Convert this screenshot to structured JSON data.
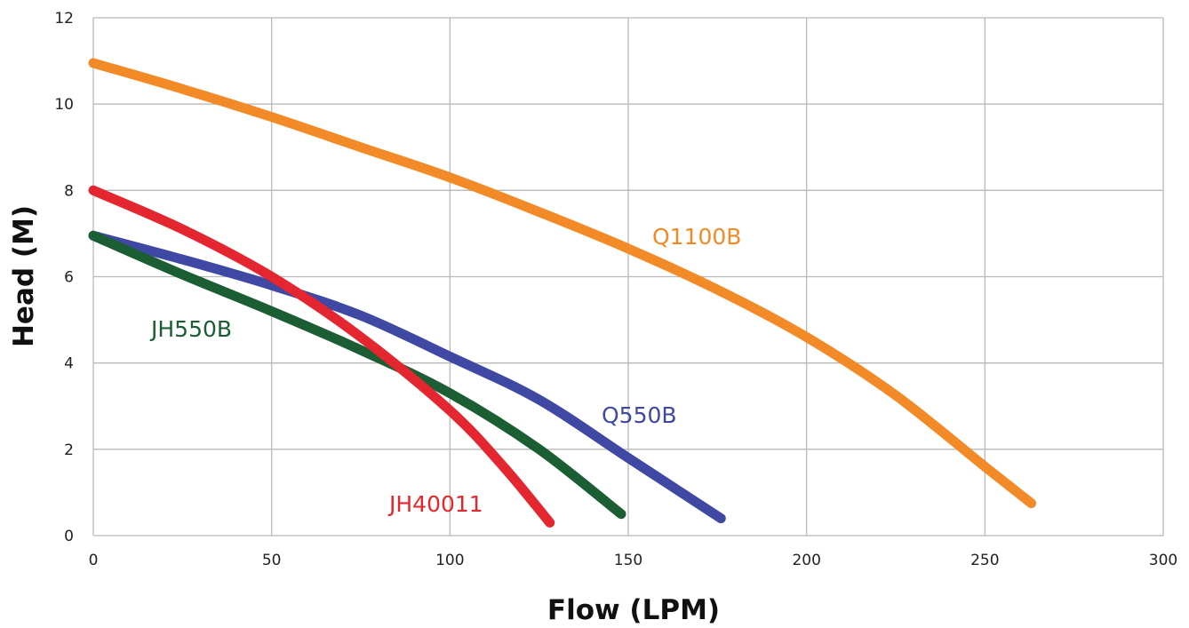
{
  "chart_data": {
    "type": "line",
    "xlabel": "Flow (LPM)",
    "ylabel": "Head (M)",
    "xlim": [
      0,
      300
    ],
    "ylim": [
      0,
      12
    ],
    "xticks": [
      0,
      50,
      100,
      150,
      200,
      250,
      300
    ],
    "yticks": [
      0,
      2,
      4,
      6,
      8,
      10,
      12
    ],
    "grid": true,
    "series": [
      {
        "name": "Q1100B",
        "color": "#f28a27",
        "points": [
          [
            0,
            10.95
          ],
          [
            25,
            10.35
          ],
          [
            50,
            9.7
          ],
          [
            75,
            9.0
          ],
          [
            100,
            8.3
          ],
          [
            125,
            7.5
          ],
          [
            150,
            6.65
          ],
          [
            175,
            5.7
          ],
          [
            200,
            4.6
          ],
          [
            225,
            3.25
          ],
          [
            250,
            1.6
          ],
          [
            263,
            0.75
          ]
        ]
      },
      {
        "name": "Q550B",
        "color": "#3f48a2",
        "points": [
          [
            0,
            6.95
          ],
          [
            25,
            6.4
          ],
          [
            50,
            5.8
          ],
          [
            75,
            5.1
          ],
          [
            100,
            4.15
          ],
          [
            125,
            3.15
          ],
          [
            150,
            1.8
          ],
          [
            176,
            0.4
          ]
        ]
      },
      {
        "name": "JH550B",
        "color": "#1c5e34",
        "points": [
          [
            0,
            6.95
          ],
          [
            25,
            6.05
          ],
          [
            50,
            5.2
          ],
          [
            75,
            4.3
          ],
          [
            100,
            3.3
          ],
          [
            125,
            2.0
          ],
          [
            148,
            0.5
          ]
        ]
      },
      {
        "name": "JH40011",
        "color": "#e3262f",
        "points": [
          [
            0,
            8.0
          ],
          [
            25,
            7.1
          ],
          [
            50,
            6.0
          ],
          [
            75,
            4.6
          ],
          [
            100,
            2.9
          ],
          [
            115,
            1.6
          ],
          [
            128,
            0.3
          ]
        ]
      }
    ]
  }
}
